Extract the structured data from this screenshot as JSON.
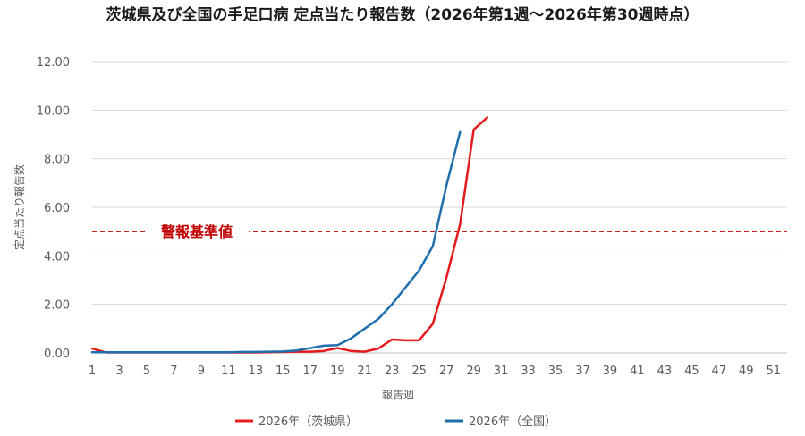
{
  "chart_data": {
    "type": "line",
    "title": "茨城県及び全国の手足口病 定点当たり報告数（2026年第1週～2026年第30週時点）",
    "xlabel": "報告週",
    "ylabel": "定点当たり報告数",
    "xlim": [
      1,
      52
    ],
    "ylim": [
      0,
      12
    ],
    "grid": "horizontal",
    "legend_position": "bottom",
    "y_ticks": [
      "0.00",
      "2.00",
      "4.00",
      "6.00",
      "8.00",
      "10.00",
      "12.00"
    ],
    "x_ticks": [
      "1",
      "3",
      "5",
      "7",
      "9",
      "11",
      "13",
      "15",
      "17",
      "19",
      "21",
      "23",
      "25",
      "27",
      "29",
      "31",
      "33",
      "35",
      "37",
      "39",
      "41",
      "43",
      "45",
      "47",
      "49",
      "51"
    ],
    "threshold": {
      "label": "警報基準値",
      "value": 5.0,
      "color": "#c00000"
    },
    "series": [
      {
        "name": "2026年（茨城県）",
        "color": "#e41a1c",
        "x": [
          1,
          2,
          3,
          4,
          5,
          6,
          7,
          8,
          9,
          10,
          11,
          12,
          13,
          14,
          15,
          16,
          17,
          18,
          19,
          20,
          21,
          22,
          23,
          24,
          25,
          26,
          27,
          28,
          29,
          30
        ],
        "values": [
          0.18,
          0.02,
          0.02,
          0.02,
          0.02,
          0.02,
          0.02,
          0.02,
          0.02,
          0.02,
          0.02,
          0.02,
          0.02,
          0.03,
          0.04,
          0.05,
          0.05,
          0.08,
          0.2,
          0.08,
          0.05,
          0.18,
          0.55,
          0.52,
          0.52,
          1.2,
          3.1,
          5.3,
          9.2,
          9.7
        ]
      },
      {
        "name": "2026年（全国）",
        "color": "#1f6fae",
        "x": [
          1,
          2,
          3,
          4,
          5,
          6,
          7,
          8,
          9,
          10,
          11,
          12,
          13,
          14,
          15,
          16,
          17,
          18,
          19,
          20,
          21,
          22,
          23,
          24,
          25,
          26,
          27,
          28
        ],
        "values": [
          0.03,
          0.03,
          0.03,
          0.03,
          0.03,
          0.03,
          0.03,
          0.03,
          0.03,
          0.03,
          0.03,
          0.04,
          0.04,
          0.05,
          0.06,
          0.1,
          0.2,
          0.3,
          0.32,
          0.6,
          1.0,
          1.4,
          2.0,
          2.7,
          3.4,
          4.4,
          6.9,
          9.1
        ]
      }
    ]
  }
}
